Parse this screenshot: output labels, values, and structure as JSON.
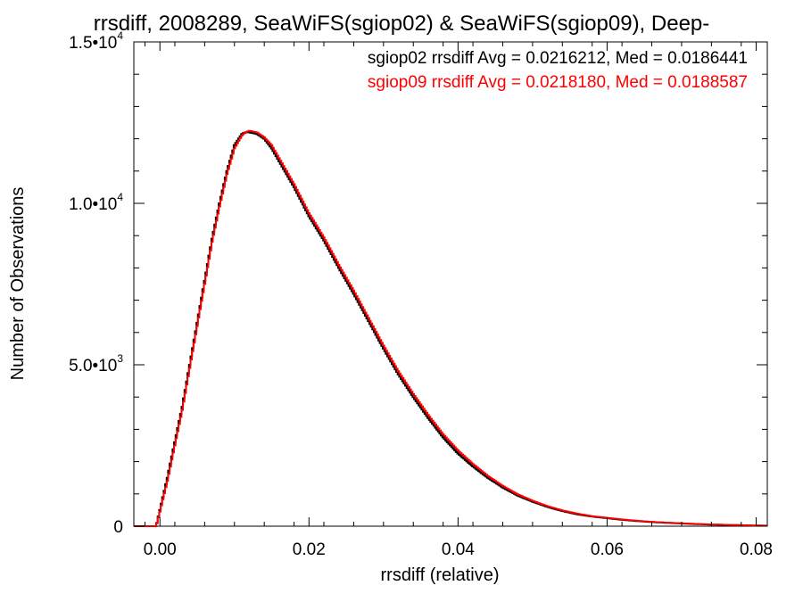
{
  "chart_data": {
    "type": "line",
    "step": true,
    "title": "rrsdiff, 2008289, SeaWiFS(sgiop02) & SeaWiFS(sgiop09), Deep-",
    "xlabel": "rrsdiff (relative)",
    "ylabel": "Number of Observations",
    "xlim": [
      -0.0035,
      0.0815
    ],
    "ylim": [
      0,
      15000
    ],
    "x_ticks": [
      0.0,
      0.02,
      0.04,
      0.06,
      0.08
    ],
    "x_tick_labels": [
      "0.00",
      "0.02",
      "0.04",
      "0.06",
      "0.08"
    ],
    "y_ticks": [
      0,
      5000,
      10000,
      15000
    ],
    "y_tick_labels": [
      {
        "mant": "0",
        "exp": ""
      },
      {
        "mant": "5.0•10",
        "exp": "3"
      },
      {
        "mant": "1.0•10",
        "exp": "4"
      },
      {
        "mant": "1.5•10",
        "exp": "4"
      }
    ],
    "grid": false,
    "legend": [
      {
        "text": "sgiop02 rrsdiff Avg = 0.0216212, Med = 0.0186441",
        "color": "#000000"
      },
      {
        "text": "sgiop09 rrsdiff Avg = 0.0218180, Med = 0.0188587",
        "color": "#ff0000"
      }
    ],
    "series": [
      {
        "color": "#000000",
        "x": [
          -0.0035,
          -0.0005,
          0.0,
          0.001,
          0.002,
          0.003,
          0.004,
          0.005,
          0.006,
          0.007,
          0.008,
          0.009,
          0.01,
          0.011,
          0.0115,
          0.012,
          0.013,
          0.014,
          0.015,
          0.016,
          0.017,
          0.018,
          0.019,
          0.02,
          0.022,
          0.024,
          0.026,
          0.028,
          0.03,
          0.032,
          0.034,
          0.036,
          0.038,
          0.04,
          0.042,
          0.044,
          0.046,
          0.048,
          0.05,
          0.052,
          0.054,
          0.056,
          0.058,
          0.06,
          0.062,
          0.064,
          0.066,
          0.068,
          0.07,
          0.072,
          0.074,
          0.076,
          0.078,
          0.08,
          0.0815
        ],
        "y": [
          0,
          0,
          500,
          1500,
          2600,
          3700,
          5000,
          6300,
          7600,
          8900,
          10000,
          11000,
          11800,
          12150,
          12200,
          12200,
          12150,
          12000,
          11700,
          11300,
          10900,
          10500,
          10050,
          9600,
          8850,
          8000,
          7200,
          6350,
          5500,
          4700,
          4000,
          3350,
          2750,
          2250,
          1850,
          1500,
          1200,
          950,
          760,
          600,
          470,
          370,
          300,
          250,
          200,
          160,
          130,
          105,
          85,
          65,
          50,
          40,
          30,
          20,
          15
        ]
      },
      {
        "color": "#ff0000",
        "x": [
          -0.0035,
          -0.0005,
          0.0,
          0.001,
          0.002,
          0.003,
          0.004,
          0.005,
          0.006,
          0.007,
          0.008,
          0.009,
          0.01,
          0.011,
          0.0115,
          0.012,
          0.013,
          0.014,
          0.015,
          0.016,
          0.017,
          0.018,
          0.019,
          0.02,
          0.022,
          0.024,
          0.026,
          0.028,
          0.03,
          0.032,
          0.034,
          0.036,
          0.038,
          0.04,
          0.042,
          0.044,
          0.046,
          0.048,
          0.05,
          0.052,
          0.054,
          0.056,
          0.058,
          0.06,
          0.062,
          0.064,
          0.066,
          0.068,
          0.07,
          0.072,
          0.074,
          0.076,
          0.078,
          0.08,
          0.0815
        ],
        "y": [
          0,
          0,
          450,
          1400,
          2500,
          3600,
          4900,
          6200,
          7500,
          8800,
          9900,
          10900,
          11700,
          12100,
          12200,
          12250,
          12200,
          12050,
          11800,
          11400,
          11000,
          10600,
          10150,
          9700,
          8950,
          8100,
          7300,
          6450,
          5600,
          4800,
          4100,
          3450,
          2850,
          2350,
          1930,
          1560,
          1250,
          990,
          790,
          620,
          490,
          390,
          310,
          260,
          210,
          170,
          135,
          110,
          90,
          70,
          55,
          42,
          32,
          22,
          16
        ]
      }
    ]
  }
}
